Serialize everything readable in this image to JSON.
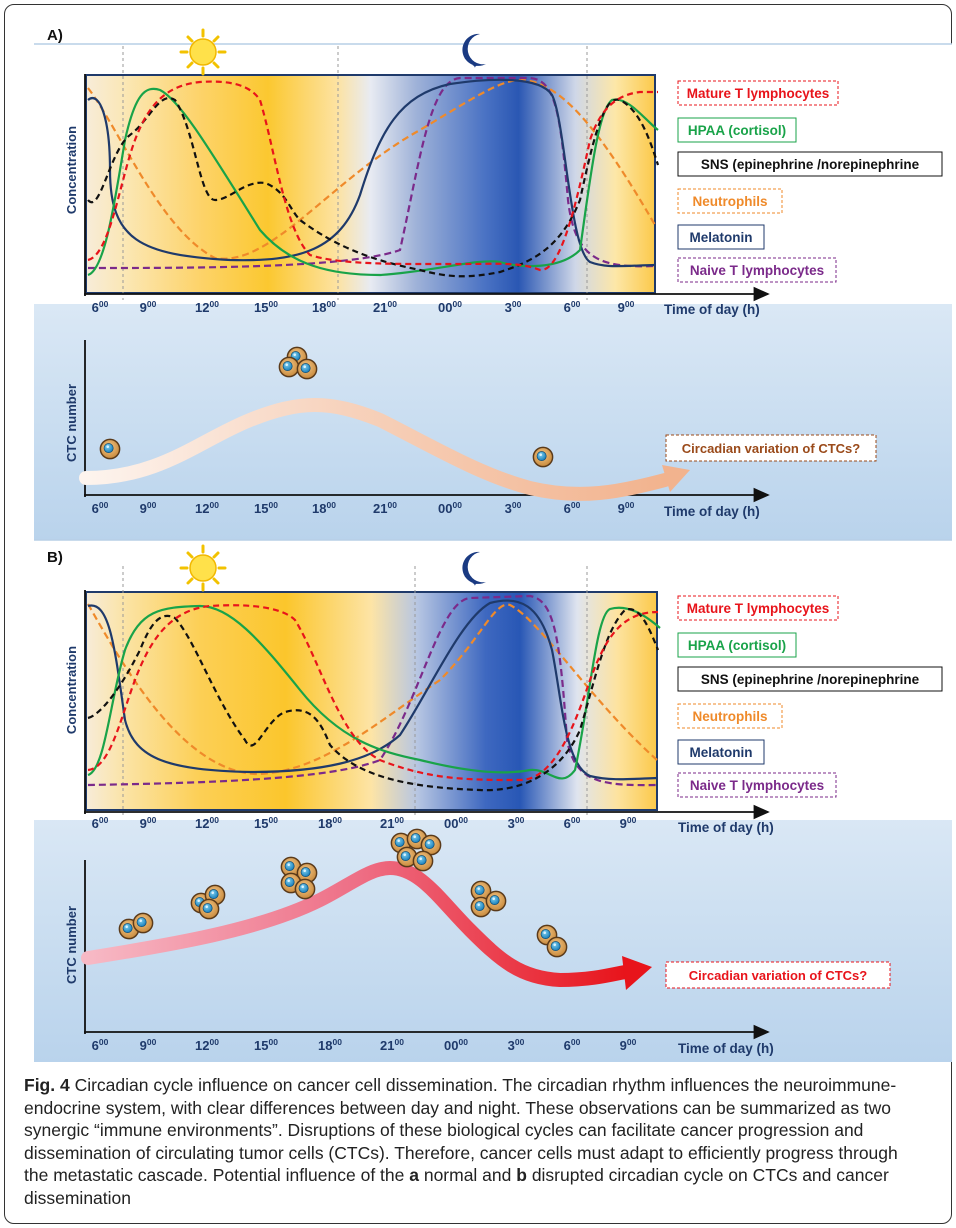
{
  "panels": [
    {
      "id": "A",
      "label": "A)",
      "ylabel_top": "Concentration",
      "ylabel_bottom": "CTC number",
      "xlabel": "Time of day (h)",
      "ticks": [
        {
          "h": "6",
          "s": "00"
        },
        {
          "h": "9",
          "s": "00"
        },
        {
          "h": "12",
          "s": "00"
        },
        {
          "h": "15",
          "s": "00"
        },
        {
          "h": "18",
          "s": "00"
        },
        {
          "h": "21",
          "s": "00"
        },
        {
          "h": "00",
          "s": "00"
        },
        {
          "h": "3",
          "s": "00"
        },
        {
          "h": "6",
          "s": "00"
        },
        {
          "h": "9",
          "s": "00"
        }
      ],
      "legend": [
        {
          "text": "Mature T lymphocytes",
          "color": "#e8141b",
          "border": "#e8141b",
          "dashed": true
        },
        {
          "text": "HPAA (cortisol)",
          "color": "#19a349",
          "border": "#19a349",
          "dashed": false
        },
        {
          "text": "SNS (epinephrine /norepinephrine",
          "color": "#111111",
          "border": "#111111",
          "dashed": false
        },
        {
          "text": "Neutrophils",
          "color": "#ef8a2a",
          "border": "#ef8a2a",
          "dashed": true
        },
        {
          "text": "Melatonin",
          "color": "#1f3a6b",
          "border": "#1f3a6b",
          "dashed": false
        },
        {
          "text": "Naive T lymphocytes",
          "color": "#7b2a8a",
          "border": "#7b2a8a",
          "dashed": true
        }
      ],
      "ctc_label": "Circadian variation of CTCs?",
      "ctc_label_color": "#9a4a1a"
    },
    {
      "id": "B",
      "label": "B)",
      "ylabel_top": "Concentration",
      "ylabel_bottom": "CTC number",
      "xlabel": "Time of day (h)",
      "ticks": [
        {
          "h": "6",
          "s": "00"
        },
        {
          "h": "9",
          "s": "00"
        },
        {
          "h": "12",
          "s": "00"
        },
        {
          "h": "15",
          "s": "00"
        },
        {
          "h": "18",
          "s": "00"
        },
        {
          "h": "21",
          "s": "00"
        },
        {
          "h": "00",
          "s": "00"
        },
        {
          "h": "3",
          "s": "00"
        },
        {
          "h": "6",
          "s": "00"
        },
        {
          "h": "9",
          "s": "00"
        }
      ],
      "legend": [
        {
          "text": "Mature T lymphocytes",
          "color": "#e8141b",
          "border": "#e8141b",
          "dashed": true
        },
        {
          "text": "HPAA (cortisol)",
          "color": "#19a349",
          "border": "#19a349",
          "dashed": false
        },
        {
          "text": "SNS (epinephrine /norepinephrine",
          "color": "#111111",
          "border": "#111111",
          "dashed": false
        },
        {
          "text": "Neutrophils",
          "color": "#ef8a2a",
          "border": "#ef8a2a",
          "dashed": true
        },
        {
          "text": "Melatonin",
          "color": "#1f3a6b",
          "border": "#1f3a6b",
          "dashed": false
        },
        {
          "text": "Naive T lymphocytes",
          "color": "#7b2a8a",
          "border": "#7b2a8a",
          "dashed": true
        }
      ],
      "ctc_label": "Circadian variation of CTCs?",
      "ctc_label_color": "#e8141b"
    }
  ],
  "icons": [
    "sun-icon",
    "moon-icon",
    "tumor-cell-icon"
  ],
  "caption": {
    "fig": "Fig. 4",
    "part1": " Circadian cycle influence on cancer cell dissemination. The circadian rhythm influences the neuroimmune-endocrine system, with clear differences between day and night. These observations can be summarized as two synergic “immune environments”. Disruptions of these biological cycles can facilitate cancer progression and dissemination of circulating tumor cells (CTCs). Therefore, cancer cells must adapt to efficiently progress through the metastatic cascade. Potential influence of the ",
    "a": "a",
    "part2": " normal and ",
    "b": "b",
    "part3": " disrupted circadian cycle on CTCs and cancer dissemination"
  }
}
